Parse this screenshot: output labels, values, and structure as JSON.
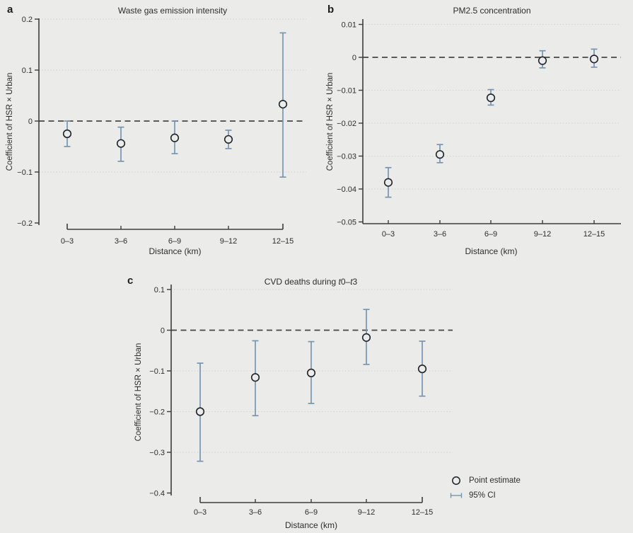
{
  "figure": {
    "background": "#ebebe9",
    "colors": {
      "ci_bar": "#7795b2",
      "marker_stroke": "#1f232b",
      "zero_line": "#454543",
      "axis": "#3c3c3a",
      "gridline": "#cfcfcc",
      "text": "#2d2d2b"
    },
    "legend": {
      "point_estimate_label": "Point estimate",
      "ci_label": "95% CI"
    }
  },
  "chart_data": [
    {
      "type": "scatter",
      "panel_letter": "a",
      "title": "Waste gas emission intensity",
      "xlabel": "Distance (km)",
      "ylabel": "Coefficient of HSR × Urban",
      "grid": "dotted-horizontal",
      "legend_position": "figure-bottom-right",
      "categories": [
        "0–3",
        "3–6",
        "6–9",
        "9–12",
        "12–15"
      ],
      "ylim": [
        -0.2,
        0.2
      ],
      "yticks": [
        0.2,
        0.1,
        0,
        -0.1,
        -0.2
      ],
      "ytick_labels": [
        "0.2",
        "0.1",
        "0",
        "−0.1",
        "−0.2"
      ],
      "gridline_values": [
        0.2,
        0.1,
        -0.1
      ],
      "zero_reference_line": 0,
      "points": [
        {
          "category": "0–3",
          "estimate": -0.025,
          "ci_low": -0.05,
          "ci_high": 0.0
        },
        {
          "category": "3–6",
          "estimate": -0.044,
          "ci_low": -0.079,
          "ci_high": -0.012
        },
        {
          "category": "6–9",
          "estimate": -0.033,
          "ci_low": -0.064,
          "ci_high": 0.0
        },
        {
          "category": "9–12",
          "estimate": -0.036,
          "ci_low": -0.054,
          "ci_high": -0.018
        },
        {
          "category": "12–15",
          "estimate": 0.033,
          "ci_low": -0.11,
          "ci_high": 0.173
        }
      ]
    },
    {
      "type": "scatter",
      "panel_letter": "b",
      "title": "PM2.5 concentration",
      "xlabel": "Distance (km)",
      "ylabel": "Coefficient of HSR × Urban",
      "grid": "dotted-horizontal",
      "categories": [
        "0–3",
        "3–6",
        "6–9",
        "9–12",
        "12–15"
      ],
      "ylim": [
        -0.05,
        0.01
      ],
      "yticks": [
        0.01,
        0,
        -0.01,
        -0.02,
        -0.03,
        -0.04,
        -0.05
      ],
      "ytick_labels": [
        "0.01",
        "0",
        "−0.01",
        "−0.02",
        "−0.03",
        "−0.04",
        "−0.05"
      ],
      "gridline_values": [
        0.01,
        -0.01,
        -0.02,
        -0.03,
        -0.04
      ],
      "zero_reference_line": 0,
      "points": [
        {
          "category": "0–3",
          "estimate": -0.038,
          "ci_low": -0.0425,
          "ci_high": -0.0335
        },
        {
          "category": "3–6",
          "estimate": -0.0295,
          "ci_low": -0.032,
          "ci_high": -0.0265
        },
        {
          "category": "6–9",
          "estimate": -0.0123,
          "ci_low": -0.0145,
          "ci_high": -0.0098
        },
        {
          "category": "9–12",
          "estimate": -0.001,
          "ci_low": -0.0032,
          "ci_high": 0.002
        },
        {
          "category": "12–15",
          "estimate": -0.0005,
          "ci_low": -0.003,
          "ci_high": 0.0025
        }
      ]
    },
    {
      "type": "scatter",
      "panel_letter": "c",
      "title": "CVD deaths during t0–t3",
      "title_parts": {
        "prefix": "CVD deaths during ",
        "t1": "t",
        "mid": "0–",
        "t2": "t",
        "suffix": "3"
      },
      "xlabel": "Distance (km)",
      "ylabel": "Coefficient of HSR × Urban",
      "grid": "dotted-horizontal",
      "categories": [
        "0–3",
        "3–6",
        "6–9",
        "9–12",
        "12–15"
      ],
      "ylim": [
        -0.4,
        0.1
      ],
      "yticks": [
        0.1,
        0,
        -0.1,
        -0.2,
        -0.3,
        -0.4
      ],
      "ytick_labels": [
        "0.1",
        "0",
        "−0.1",
        "−0.2",
        "−0.3",
        "−0.4"
      ],
      "gridline_values": [
        0.1,
        -0.1,
        -0.2,
        -0.3
      ],
      "zero_reference_line": 0,
      "points": [
        {
          "category": "0–3",
          "estimate": -0.2,
          "ci_low": -0.322,
          "ci_high": -0.081
        },
        {
          "category": "3–6",
          "estimate": -0.116,
          "ci_low": -0.21,
          "ci_high": -0.026
        },
        {
          "category": "6–9",
          "estimate": -0.105,
          "ci_low": -0.18,
          "ci_high": -0.028
        },
        {
          "category": "9–12",
          "estimate": -0.018,
          "ci_low": -0.084,
          "ci_high": 0.051
        },
        {
          "category": "12–15",
          "estimate": -0.095,
          "ci_low": -0.162,
          "ci_high": -0.027
        }
      ]
    }
  ]
}
